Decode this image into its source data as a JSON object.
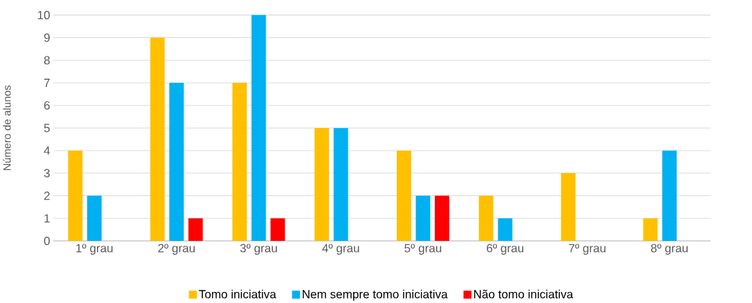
{
  "chart_data": {
    "type": "bar",
    "ylabel": "Número de alunos",
    "categories": [
      "1º grau",
      "2º grau",
      "3º grau",
      "4º grau",
      "5º grau",
      "6º grau",
      "7º grau",
      "8º grau"
    ],
    "series": [
      {
        "name": "Tomo iniciativa",
        "color": "#ffc000",
        "values": [
          4,
          9,
          7,
          5,
          4,
          2,
          3,
          1
        ]
      },
      {
        "name": "Nem sempre tomo iniciativa",
        "color": "#00b0f0",
        "values": [
          2,
          7,
          10,
          5,
          2,
          1,
          null,
          4
        ]
      },
      {
        "name": "Não tomo iniciativa",
        "color": "#ff0000",
        "values": [
          null,
          1,
          1,
          null,
          2,
          null,
          null,
          null
        ]
      }
    ],
    "ylim": [
      0,
      10
    ],
    "yticks": [
      0,
      1,
      2,
      3,
      4,
      5,
      6,
      7,
      8,
      9,
      10
    ],
    "grid": "y",
    "legend": "bottom"
  }
}
